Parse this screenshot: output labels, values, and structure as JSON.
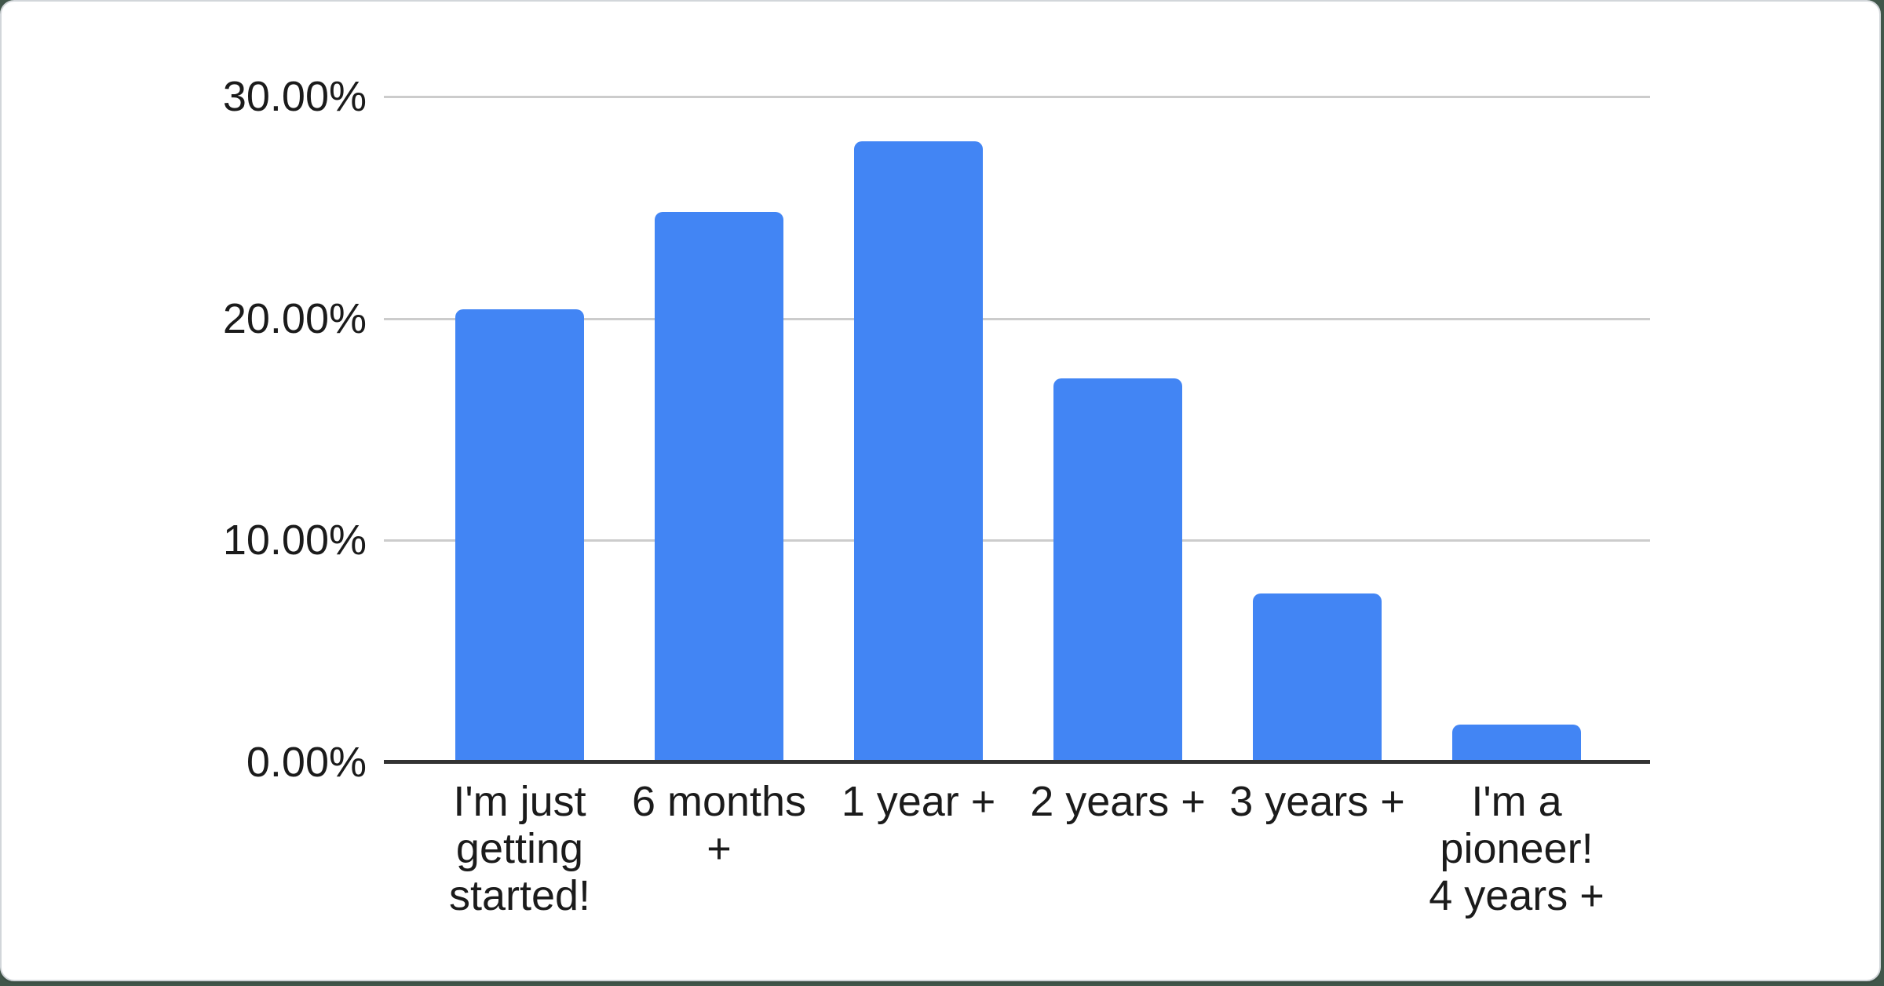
{
  "chart_data": {
    "type": "bar",
    "title": "",
    "xlabel": "",
    "ylabel": "",
    "categories": [
      "I'm just\ngetting\nstarted!",
      "6 months\n+",
      "1 year +",
      "2 years +",
      "3 years +",
      "I'm a\npioneer!\n4 years +"
    ],
    "values": [
      20.4,
      24.8,
      28.0,
      17.3,
      7.6,
      1.7
    ],
    "value_unit": "%",
    "ylim": [
      0,
      30
    ],
    "y_ticks": [
      {
        "value": 0,
        "label": "0.00%"
      },
      {
        "value": 10,
        "label": "10.00%"
      },
      {
        "value": 20,
        "label": "20.00%"
      },
      {
        "value": 30,
        "label": "30.00%"
      }
    ],
    "grid": "horizontal",
    "legend": "none"
  },
  "colors": {
    "bar": "#4285f4",
    "gridline": "#cccccc",
    "axis_line": "#333333",
    "label_text": "#1b1b1b",
    "card_background": "#ffffff",
    "card_border": "#d2d6da",
    "page_background": "#41564a"
  }
}
